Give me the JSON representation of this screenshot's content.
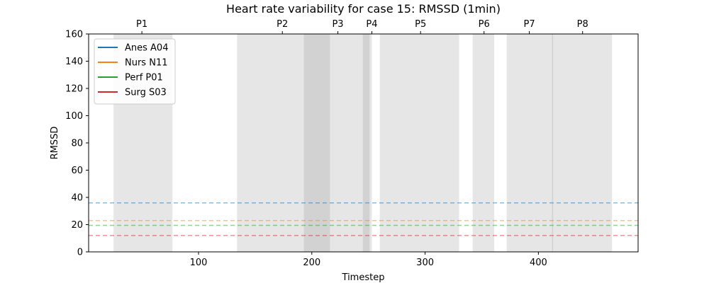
{
  "chart_data": {
    "type": "line",
    "title": "Heart rate variability for case 15: RMSSD (1min)",
    "xlabel": "Timestep",
    "ylabel": "RMSSD",
    "xlim": [
      3,
      488
    ],
    "ylim": [
      0,
      160
    ],
    "xticks": [
      100,
      200,
      300,
      400
    ],
    "yticks": [
      0,
      20,
      40,
      60,
      80,
      100,
      120,
      140,
      160
    ],
    "legend_position": "top-left",
    "series": [
      {
        "name": "Anes A04",
        "color": "#1f77b4",
        "baseline": 36
      },
      {
        "name": "Nurs N11",
        "color": "#ff7f0e",
        "baseline": 23
      },
      {
        "name": "Perf P01",
        "color": "#2ca02c",
        "baseline": 19.5
      },
      {
        "name": "Surg S03",
        "color": "#d62728",
        "baseline": 12
      }
    ],
    "phases": [
      {
        "label": "P1",
        "start": 25,
        "end": 77
      },
      {
        "label": "P2",
        "start": 134,
        "end": 216
      },
      {
        "label": "P3",
        "start": 193,
        "end": 253
      },
      {
        "label": "P4",
        "start": 245,
        "end": 251
      },
      {
        "label": "P5",
        "start": 260,
        "end": 330
      },
      {
        "label": "P6",
        "start": 342,
        "end": 361
      },
      {
        "label": "P7",
        "start": 372,
        "end": 413
      },
      {
        "label": "P8",
        "start": 412,
        "end": 465
      }
    ],
    "phase_label_x": [
      50,
      174,
      223,
      253,
      296,
      352,
      392,
      439
    ]
  }
}
